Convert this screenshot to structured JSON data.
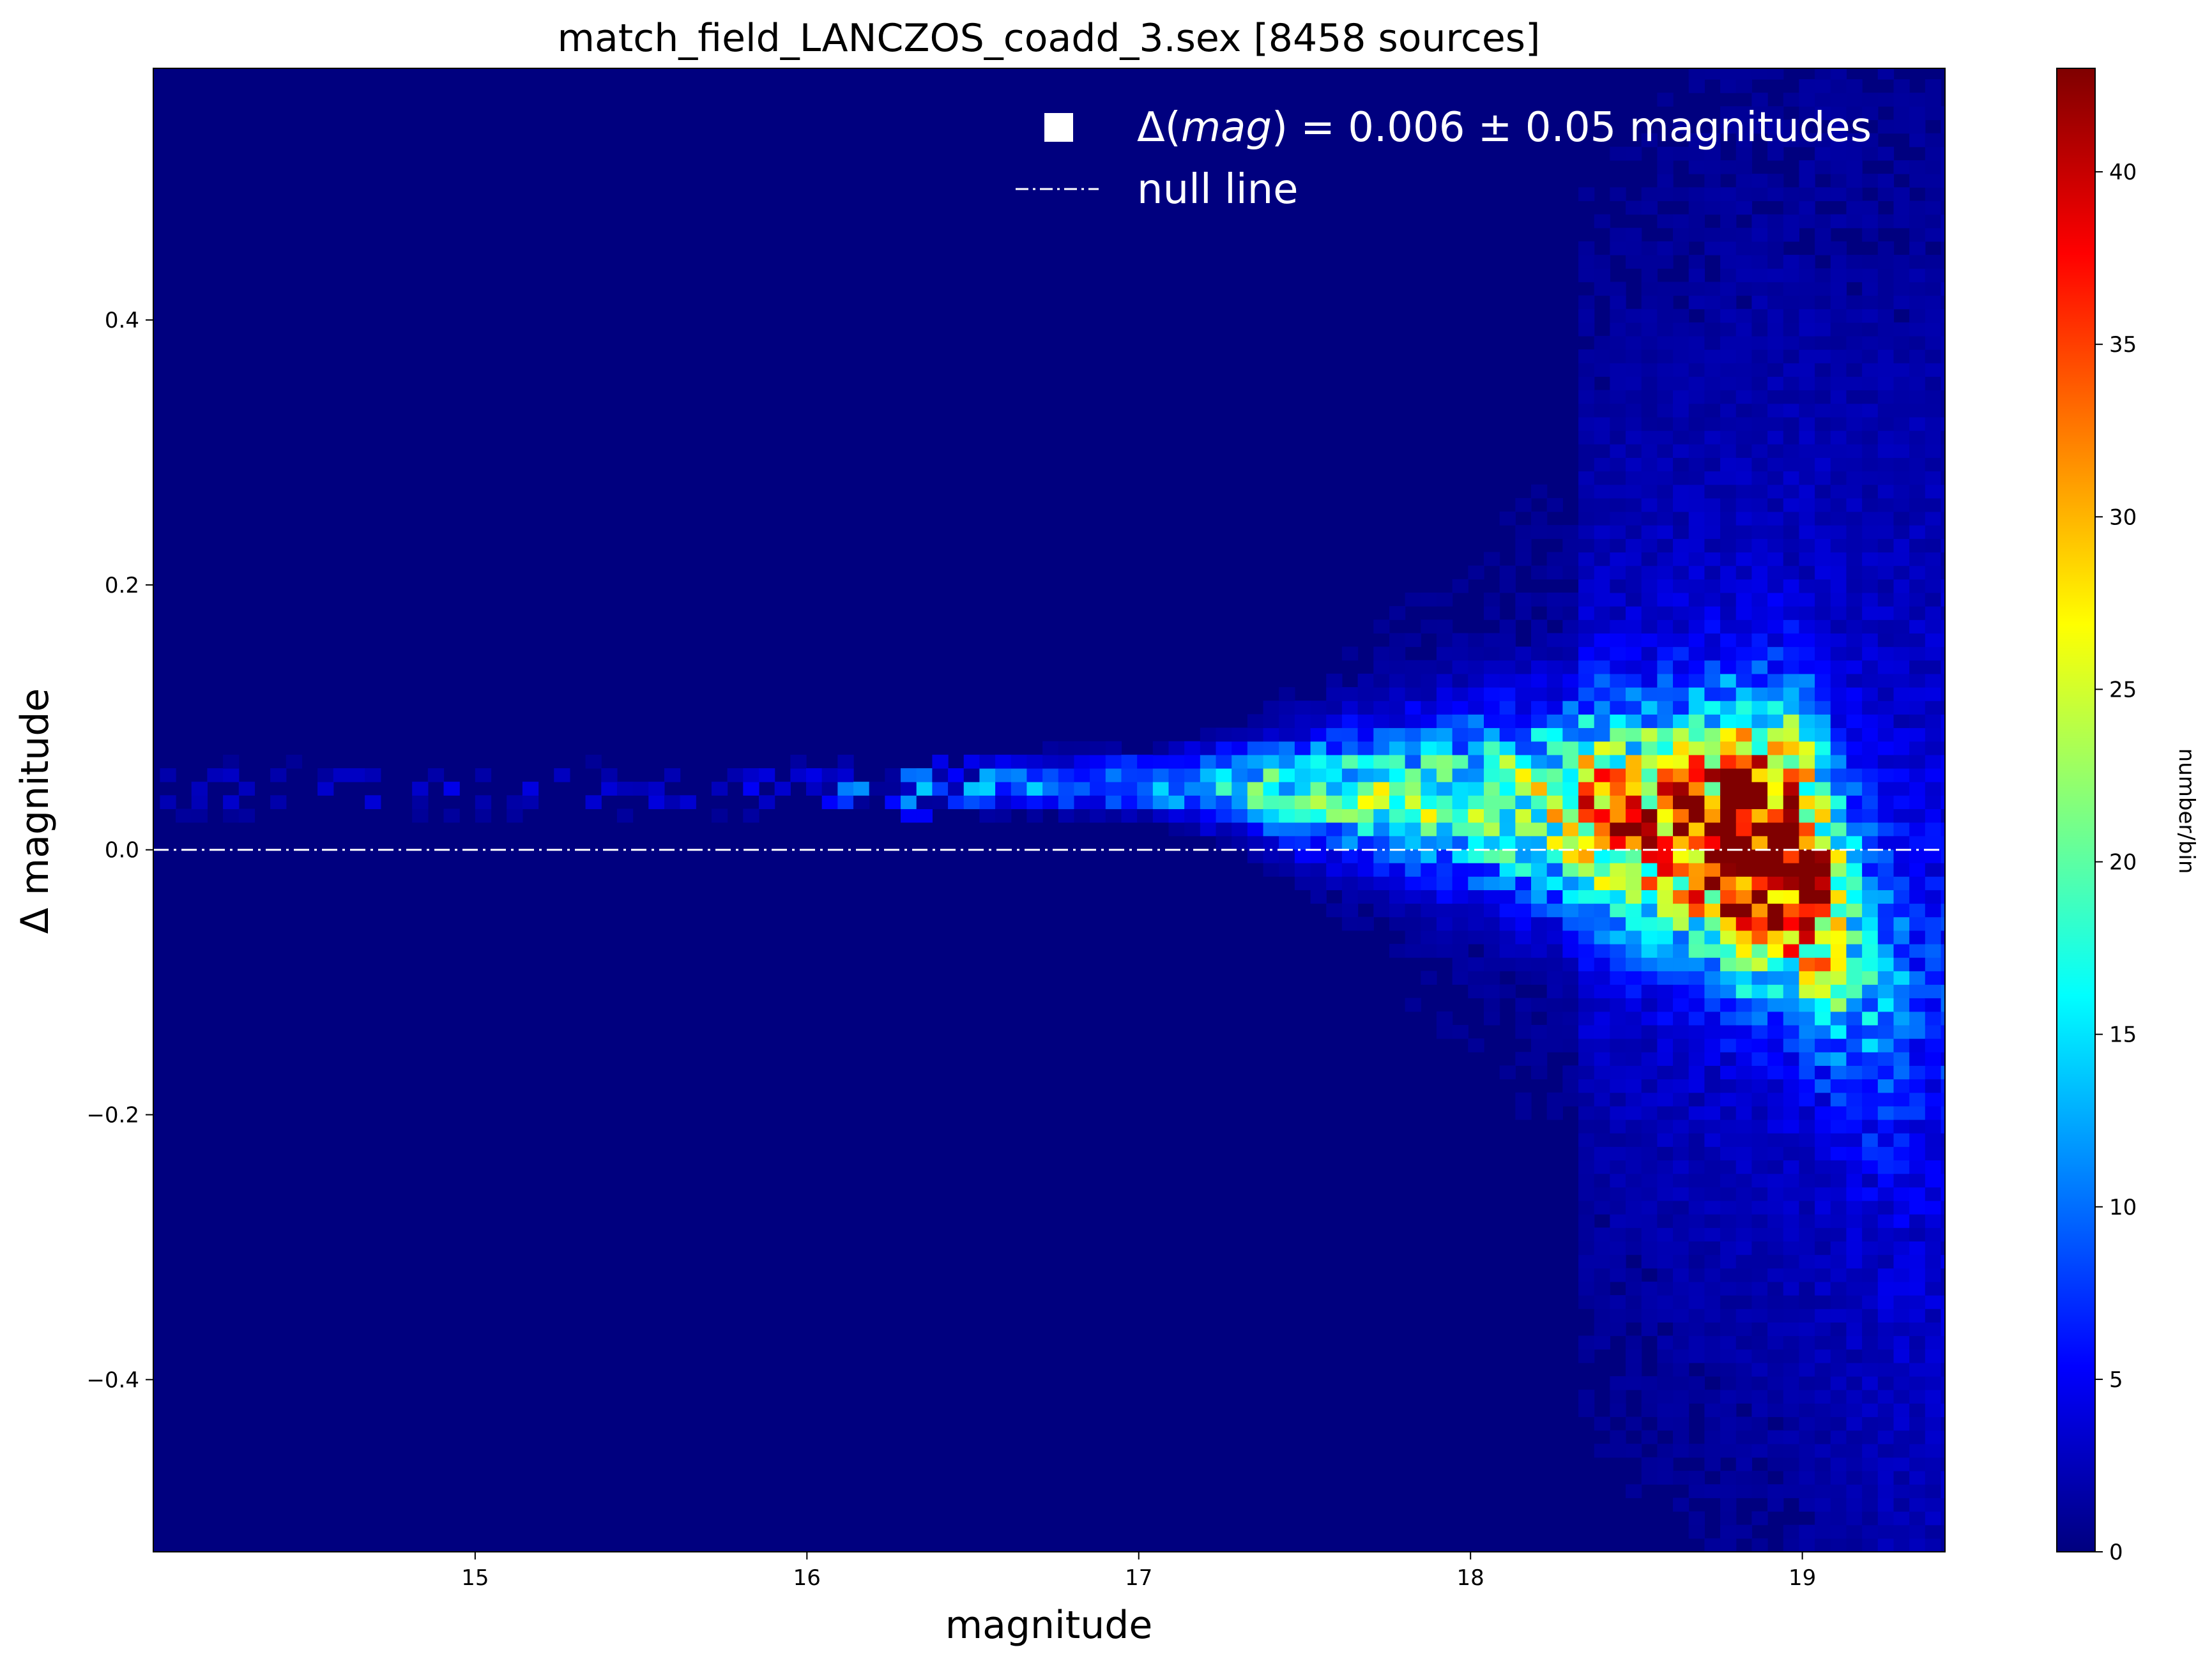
{
  "chart_data": {
    "type": "heatmap",
    "title": "match_field_LANCZOS_coadd_3.sex [8458  sources]",
    "xlabel": "magnitude",
    "ylabel": "Δ magnitude",
    "xlim": [
      14.03,
      19.43
    ],
    "ylim": [
      -0.53,
      0.59
    ],
    "xticks": [
      15,
      16,
      17,
      18,
      19
    ],
    "xtick_labels": [
      "15",
      "16",
      "17",
      "18",
      "19"
    ],
    "yticks": [
      -0.4,
      -0.2,
      0.0,
      0.2,
      0.4
    ],
    "ytick_labels": [
      "−0.4",
      "−0.2",
      "0.0",
      "0.2",
      "0.4"
    ],
    "colorbar": {
      "label": "number/bin",
      "min": 0,
      "max": 43,
      "ticks": [
        0,
        5,
        10,
        15,
        20,
        25,
        30,
        35,
        40
      ],
      "tick_labels": [
        "0",
        "5",
        "10",
        "15",
        "20",
        "25",
        "30",
        "35",
        "40"
      ],
      "colormap": "jet"
    },
    "legend": {
      "placement": "top-right",
      "entries": [
        {
          "marker": "square",
          "label": "Δ(mag) = 0.006 ± 0.05 magnitudes",
          "label_prefix": "Δ(",
          "label_italic": "mag",
          "label_suffix": ") = 0.006 ± 0.05 magnitudes"
        },
        {
          "marker": "dash-dot-line",
          "label": "null line"
        }
      ]
    },
    "null_line_y": 0.0,
    "bin_size": {
      "dx": 0.0475,
      "dy": 0.0102
    },
    "mean_offset": 0.006,
    "scatter": 0.05,
    "n_sources": 8458,
    "density_ridge": [
      {
        "x": 14.1,
        "y": 0.04,
        "count": 4
      },
      {
        "x": 15.0,
        "y": 0.04,
        "count": 3
      },
      {
        "x": 15.5,
        "y": 0.04,
        "count": 4
      },
      {
        "x": 16.0,
        "y": 0.04,
        "count": 5
      },
      {
        "x": 16.3,
        "y": 0.04,
        "count": 14
      },
      {
        "x": 16.6,
        "y": 0.045,
        "count": 10
      },
      {
        "x": 17.0,
        "y": 0.045,
        "count": 14
      },
      {
        "x": 17.4,
        "y": 0.04,
        "count": 16
      },
      {
        "x": 17.8,
        "y": 0.035,
        "count": 18
      },
      {
        "x": 18.1,
        "y": 0.03,
        "count": 20
      },
      {
        "x": 18.4,
        "y": 0.02,
        "count": 26
      },
      {
        "x": 18.6,
        "y": 0.01,
        "count": 30
      },
      {
        "x": 18.8,
        "y": 0.0,
        "count": 43
      },
      {
        "x": 18.97,
        "y": -0.01,
        "count": 40
      },
      {
        "x": 19.1,
        "y": -0.06,
        "count": 15
      },
      {
        "x": 19.25,
        "y": -0.12,
        "count": 5
      }
    ],
    "colors": {
      "background": "#00007f",
      "null_line": "#ffffff"
    }
  }
}
